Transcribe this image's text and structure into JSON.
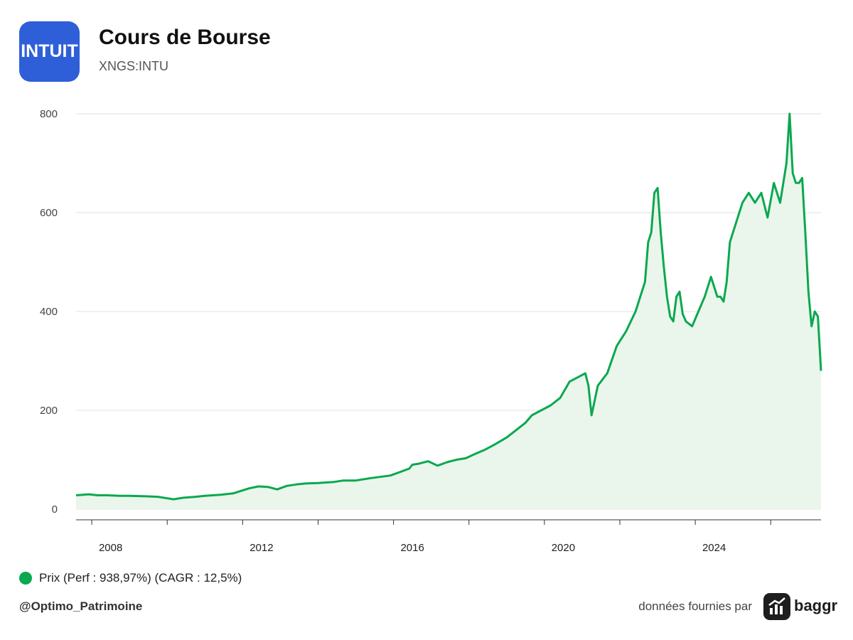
{
  "header": {
    "logo_text": "INTUIT",
    "title": "Cours de Bourse",
    "subtitle": "XNGS:INTU"
  },
  "legend": {
    "label": "Prix (Perf : 938,97%) (CAGR : 12,5%)"
  },
  "footer": {
    "handle": "@Optimo_Patrimoine",
    "credit": "données fournies par",
    "brand": "baggr"
  },
  "colors": {
    "line": "#0aa84f",
    "area": "#eaf6ec",
    "grid": "#e2e2e2",
    "logo_bg": "#2f5fd8"
  },
  "chart_data": {
    "type": "area",
    "title": "Cours de Bourse",
    "subtitle": "XNGS:INTU",
    "xlabel": "",
    "ylabel": "",
    "ylim": [
      0,
      800
    ],
    "xlim": [
      "2006-08",
      "2026-05"
    ],
    "yticks": [
      0,
      200,
      400,
      600,
      800
    ],
    "xticks": [
      "2008",
      "2012",
      "2016",
      "2020",
      "2024"
    ],
    "grid": true,
    "legend_position": "bottom-left",
    "series": [
      {
        "name": "Prix (Perf : 938,97%) (CAGR : 12,5%)",
        "x": [
          "2006-08",
          "2006-12",
          "2007-03",
          "2007-06",
          "2007-10",
          "2008-01",
          "2008-06",
          "2008-10",
          "2009-01",
          "2009-03",
          "2009-06",
          "2009-10",
          "2010-01",
          "2010-06",
          "2010-10",
          "2011-01",
          "2011-03",
          "2011-06",
          "2011-09",
          "2011-12",
          "2012-03",
          "2012-06",
          "2012-09",
          "2013-01",
          "2013-06",
          "2013-09",
          "2014-01",
          "2014-06",
          "2014-12",
          "2015-03",
          "2015-06",
          "2015-07",
          "2015-09",
          "2015-12",
          "2016-03",
          "2016-06",
          "2016-09",
          "2016-12",
          "2017-03",
          "2017-06",
          "2017-09",
          "2018-01",
          "2018-04",
          "2018-07",
          "2018-09",
          "2018-12",
          "2019-03",
          "2019-06",
          "2019-09",
          "2019-12",
          "2020-02",
          "2020-03",
          "2020-04",
          "2020-06",
          "2020-09",
          "2020-12",
          "2021-03",
          "2021-06",
          "2021-09",
          "2021-10",
          "2021-11",
          "2021-12",
          "2022-01",
          "2022-02",
          "2022-03",
          "2022-04",
          "2022-05",
          "2022-06",
          "2022-07",
          "2022-08",
          "2022-09",
          "2022-10",
          "2022-12",
          "2023-02",
          "2023-04",
          "2023-06",
          "2023-08",
          "2023-09",
          "2023-10",
          "2023-11",
          "2023-12",
          "2024-02",
          "2024-04",
          "2024-06",
          "2024-08",
          "2024-10",
          "2024-12",
          "2025-02",
          "2025-04",
          "2025-06",
          "2025-07",
          "2025-08",
          "2025-09",
          "2025-10",
          "2025-11",
          "2025-12",
          "2026-01",
          "2026-02",
          "2026-03",
          "2026-04",
          "2026-05"
        ],
        "values": [
          28,
          30,
          28,
          28,
          27,
          27,
          26,
          25,
          22,
          20,
          23,
          25,
          27,
          29,
          32,
          38,
          42,
          46,
          45,
          40,
          47,
          50,
          52,
          53,
          55,
          58,
          58,
          63,
          68,
          75,
          82,
          90,
          92,
          97,
          88,
          95,
          100,
          103,
          112,
          120,
          130,
          145,
          160,
          175,
          190,
          200,
          210,
          225,
          258,
          268,
          275,
          250,
          190,
          250,
          275,
          330,
          360,
          400,
          460,
          540,
          560,
          640,
          650,
          560,
          490,
          430,
          390,
          380,
          430,
          440,
          395,
          380,
          370,
          400,
          430,
          470,
          430,
          430,
          420,
          460,
          540,
          580,
          620,
          640,
          620,
          640,
          590,
          660,
          620,
          700,
          800,
          680,
          660,
          660,
          670,
          560,
          440,
          370,
          400,
          390,
          280
        ]
      }
    ]
  }
}
